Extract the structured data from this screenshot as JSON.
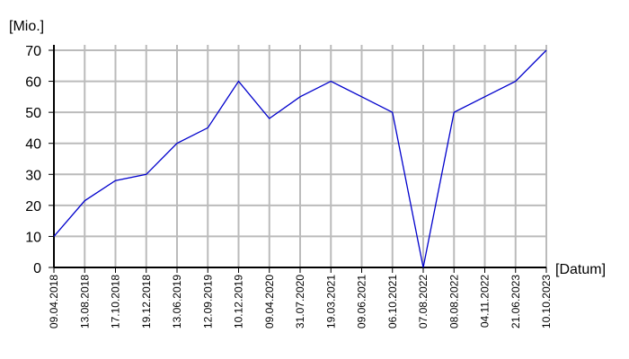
{
  "chart_data": {
    "type": "line",
    "ylabel": "[Mio.]",
    "xlabel": "[Datum]",
    "categories": [
      "09.04.2018",
      "13.08.2018",
      "17.10.2018",
      "19.12.2018",
      "13.06.2019",
      "12.09.2019",
      "10.12.2019",
      "09.04.2020",
      "31.07.2020",
      "19.03.2021",
      "09.06.2021",
      "06.10.2021",
      "07.08.2022",
      "08.08.2022",
      "04.11.2022",
      "21.06.2023",
      "10.10.2023"
    ],
    "series": [
      {
        "color": "#0000cc",
        "values": [
          10,
          21.5,
          28,
          30,
          40,
          45,
          60,
          48,
          55,
          60,
          55,
          50,
          0,
          50,
          55,
          60,
          70
        ]
      }
    ],
    "ylim": [
      0,
      70
    ],
    "yticks": [
      0,
      10,
      20,
      30,
      40,
      50,
      60,
      70
    ],
    "grid": true
  }
}
